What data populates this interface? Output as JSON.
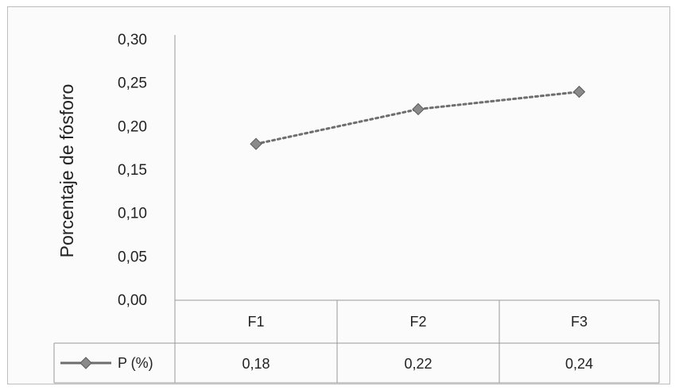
{
  "chart_data": {
    "type": "line",
    "categories": [
      "F1",
      "F2",
      "F3"
    ],
    "series": [
      {
        "name": "P (%)",
        "values": [
          0.18,
          0.22,
          0.24
        ],
        "value_labels": [
          "0,18",
          "0,22",
          "0,24"
        ],
        "color": "#6e6e6e",
        "line_style": "dotted",
        "marker": "diamond"
      }
    ],
    "title": "",
    "xlabel": "",
    "ylabel": "Porcentaje de fósforo",
    "ylim": [
      0,
      0.3
    ],
    "y_ticks": [
      "0,00",
      "0,05",
      "0,10",
      "0,15",
      "0,20",
      "0,25",
      "0,30"
    ],
    "grid": false,
    "legend": "data-table"
  }
}
